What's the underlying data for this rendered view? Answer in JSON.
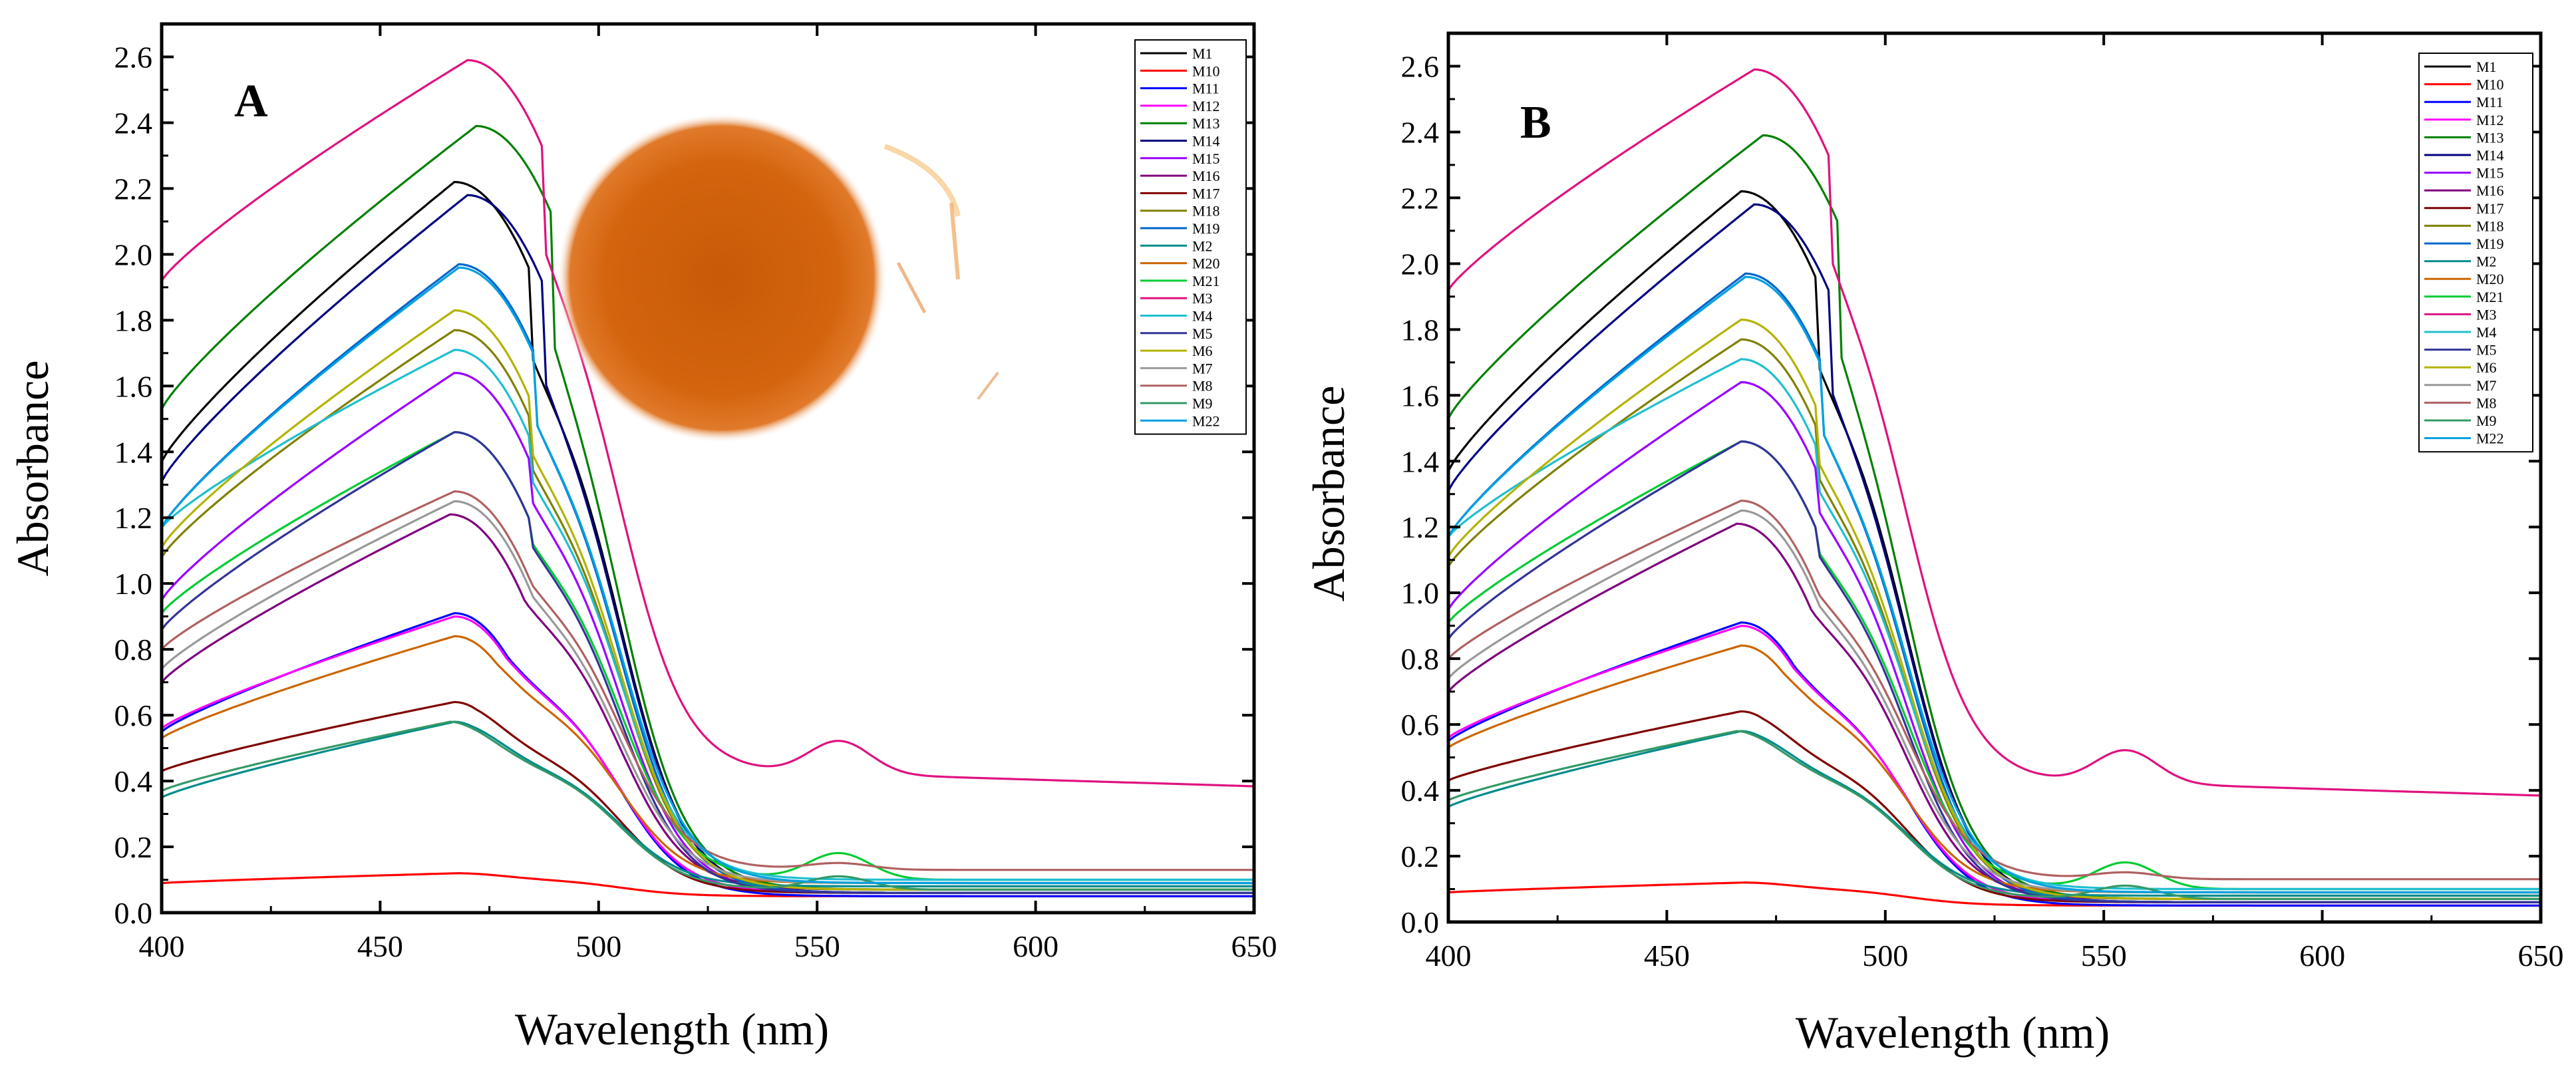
{
  "chart_data": [
    {
      "type": "line",
      "panel_label": "A",
      "xlabel": "Wavelength (nm)",
      "ylabel": "Absorbance",
      "xlim": [
        400,
        650
      ],
      "ylim": [
        0,
        2.7
      ],
      "x_ticks": [
        400,
        450,
        500,
        550,
        600,
        650
      ],
      "y_ticks": [
        0.0,
        0.2,
        0.4,
        0.6,
        0.8,
        1.0,
        1.2,
        1.4,
        1.6,
        1.8,
        2.0,
        2.2,
        2.4,
        2.6
      ],
      "x_tick_labels": [
        "400",
        "450",
        "500",
        "550",
        "600",
        "650"
      ],
      "y_tick_labels": [
        "0.0",
        "0.2",
        "0.4",
        "0.6",
        "0.8",
        "1.0",
        "1.2",
        "1.4",
        "1.6",
        "1.8",
        "2.0",
        "2.2",
        "2.4",
        "2.6"
      ],
      "legend_position": "top-right",
      "inset_image": "orange-pigment-colony-photo",
      "series_ref": "shared"
    },
    {
      "type": "line",
      "panel_label": "B",
      "xlabel": "Wavelength (nm)",
      "ylabel": "Absorbance",
      "xlim": [
        400,
        650
      ],
      "ylim": [
        0,
        2.7
      ],
      "x_ticks": [
        400,
        450,
        500,
        550,
        600,
        650
      ],
      "y_ticks": [
        0.0,
        0.2,
        0.4,
        0.6,
        0.8,
        1.0,
        1.2,
        1.4,
        1.6,
        1.8,
        2.0,
        2.2,
        2.4,
        2.6
      ],
      "x_tick_labels": [
        "400",
        "450",
        "500",
        "550",
        "600",
        "650"
      ],
      "y_tick_labels": [
        "0.0",
        "0.2",
        "0.4",
        "0.6",
        "0.8",
        "1.0",
        "1.2",
        "1.4",
        "1.6",
        "1.8",
        "2.0",
        "2.2",
        "2.4",
        "2.6"
      ],
      "legend_position": "top-right",
      "series_ref": "shared"
    }
  ],
  "series": [
    {
      "name": "M1",
      "color": "#000000",
      "start": 1.37,
      "peak": 2.22,
      "peak_x": 467,
      "tail": 0.06,
      "shoulder": 0.0
    },
    {
      "name": "M10",
      "color": "#ff0000",
      "start": 0.09,
      "peak": 0.12,
      "peak_x": 468,
      "tail": 0.05,
      "shoulder": 0.0
    },
    {
      "name": "M11",
      "color": "#0000ff",
      "start": 0.55,
      "peak": 0.91,
      "peak_x": 467,
      "tail": 0.05,
      "shoulder": 0.0
    },
    {
      "name": "M12",
      "color": "#ff00ff",
      "start": 0.56,
      "peak": 0.9,
      "peak_x": 467,
      "tail": 0.06,
      "shoulder": 0.0
    },
    {
      "name": "M13",
      "color": "#008000",
      "start": 1.53,
      "peak": 2.39,
      "peak_x": 472,
      "tail": 0.07,
      "shoulder": 0.0
    },
    {
      "name": "M14",
      "color": "#000080",
      "start": 1.31,
      "peak": 2.18,
      "peak_x": 470,
      "tail": 0.06,
      "shoulder": 0.0
    },
    {
      "name": "M15",
      "color": "#9900ff",
      "start": 0.95,
      "peak": 1.64,
      "peak_x": 467,
      "tail": 0.06,
      "shoulder": 0.0
    },
    {
      "name": "M16",
      "color": "#800080",
      "start": 0.7,
      "peak": 1.21,
      "peak_x": 466,
      "tail": 0.07,
      "shoulder": 0.0
    },
    {
      "name": "M17",
      "color": "#800000",
      "start": 0.43,
      "peak": 0.64,
      "peak_x": 467,
      "tail": 0.06,
      "shoulder": 0.0
    },
    {
      "name": "M18",
      "color": "#808000",
      "start": 1.08,
      "peak": 1.77,
      "peak_x": 467,
      "tail": 0.07,
      "shoulder": 0.0
    },
    {
      "name": "M19",
      "color": "#0066cc",
      "start": 1.17,
      "peak": 1.97,
      "peak_x": 468,
      "tail": 0.06,
      "shoulder": 0.0
    },
    {
      "name": "M2",
      "color": "#008b8b",
      "start": 0.35,
      "peak": 0.58,
      "peak_x": 467,
      "tail": 0.08,
      "shoulder": 0.0
    },
    {
      "name": "M20",
      "color": "#cc6600",
      "start": 0.53,
      "peak": 0.84,
      "peak_x": 467,
      "tail": 0.09,
      "shoulder": 0.0
    },
    {
      "name": "M21",
      "color": "#00cc33",
      "start": 0.91,
      "peak": 1.46,
      "peak_x": 467,
      "tail": 0.1,
      "shoulder": 0.08
    },
    {
      "name": "M3",
      "color": "#e0117f",
      "start": 1.92,
      "peak": 2.59,
      "peak_x": 470,
      "tail": 0.42,
      "shoulder": 0.1
    },
    {
      "name": "M4",
      "color": "#1fbfcf",
      "start": 1.17,
      "peak": 1.71,
      "peak_x": 467,
      "tail": 0.1,
      "shoulder": 0.0
    },
    {
      "name": "M5",
      "color": "#333399",
      "start": 0.86,
      "peak": 1.46,
      "peak_x": 467,
      "tail": 0.06,
      "shoulder": 0.0
    },
    {
      "name": "M6",
      "color": "#b3b300",
      "start": 1.11,
      "peak": 1.83,
      "peak_x": 467,
      "tail": 0.07,
      "shoulder": 0.0
    },
    {
      "name": "M7",
      "color": "#999999",
      "start": 0.74,
      "peak": 1.25,
      "peak_x": 467,
      "tail": 0.09,
      "shoulder": 0.0
    },
    {
      "name": "M8",
      "color": "#b06060",
      "start": 0.8,
      "peak": 1.28,
      "peak_x": 467,
      "tail": 0.13,
      "shoulder": 0.02
    },
    {
      "name": "M9",
      "color": "#339966",
      "start": 0.37,
      "peak": 0.58,
      "peak_x": 466,
      "tail": 0.07,
      "shoulder": 0.04
    },
    {
      "name": "M22",
      "color": "#00a0e0",
      "start": 1.17,
      "peak": 1.96,
      "peak_x": 468,
      "tail": 0.09,
      "shoulder": 0.0
    }
  ]
}
